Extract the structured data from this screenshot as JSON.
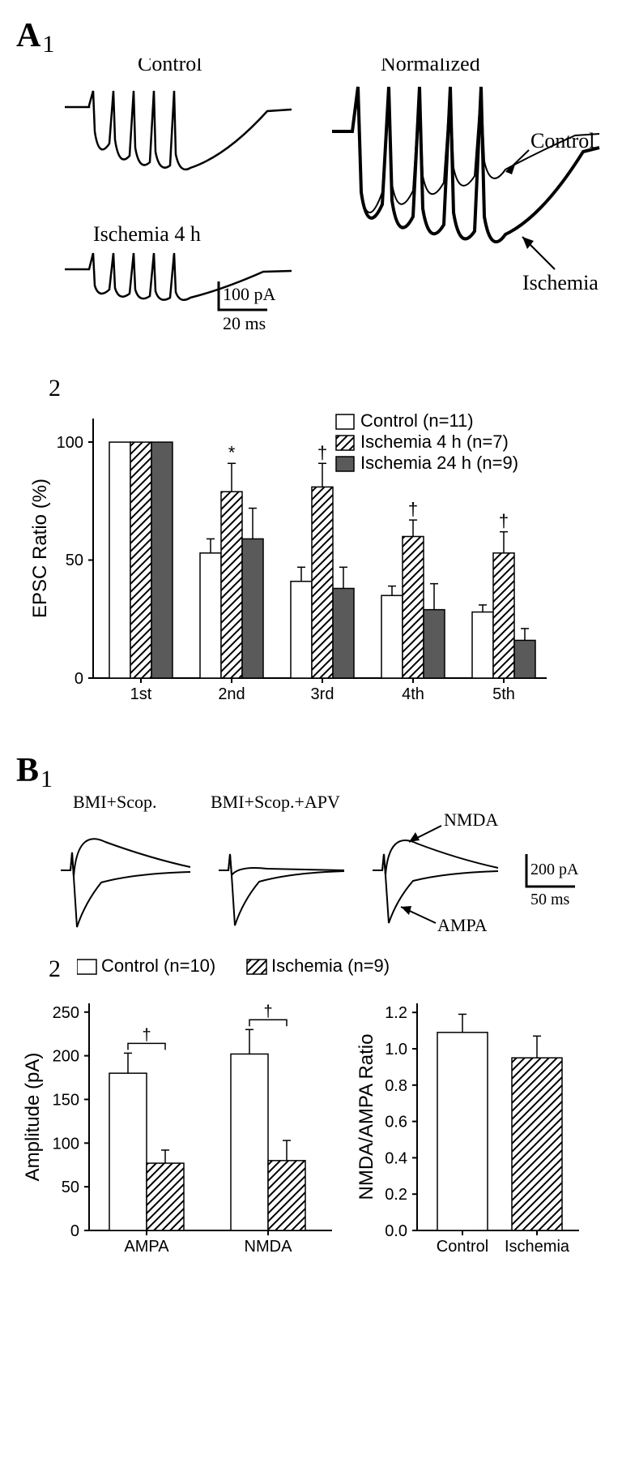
{
  "panelA": {
    "letter": "A",
    "sub1": "1",
    "sub2": "2",
    "traces": {
      "control_label": "Control",
      "ischemia_label": "Ischemia 4 h",
      "normalized_label": "Normalized",
      "overlay_control": "Control",
      "overlay_ischemia": "Ischemia",
      "scale_y": "100 pA",
      "scale_x": "20 ms"
    },
    "bar_chart": {
      "type": "bar",
      "ylabel": "EPSC Ratio (%)",
      "ylim": [
        0,
        110
      ],
      "yticks": [
        0,
        50,
        100
      ],
      "categories": [
        "1st",
        "2nd",
        "3rd",
        "4th",
        "5th"
      ],
      "groups": [
        {
          "label": "Control (n=11)",
          "fill": "#ffffff",
          "pattern": "none",
          "stroke": "#000000"
        },
        {
          "label": "Ischemia 4 h (n=7)",
          "fill": "#ffffff",
          "pattern": "diag",
          "stroke": "#000000"
        },
        {
          "label": "Ischemia 24 h (n=9)",
          "fill": "#5a5a5a",
          "pattern": "none",
          "stroke": "#000000"
        }
      ],
      "values": [
        [
          100,
          100,
          100
        ],
        [
          53,
          79,
          59
        ],
        [
          41,
          81,
          38
        ],
        [
          35,
          60,
          29
        ],
        [
          28,
          53,
          16
        ]
      ],
      "errors": [
        [
          0,
          0,
          0
        ],
        [
          6,
          12,
          13
        ],
        [
          6,
          10,
          9
        ],
        [
          4,
          7,
          11
        ],
        [
          3,
          9,
          5
        ]
      ],
      "sig": [
        null,
        "*",
        "†",
        "†",
        "†"
      ],
      "bar_width": 0.26,
      "background": "#ffffff",
      "axis_color": "#000000"
    }
  },
  "panelB": {
    "letter": "B",
    "sub1": "1",
    "sub2": "2",
    "traces": {
      "bmi_scop": "BMI+Scop.",
      "bmi_scop_apv": "BMI+Scop.+APV",
      "nmda_label": "NMDA",
      "ampa_label": "AMPA",
      "scale_y": "200 pA",
      "scale_x": "50 ms"
    },
    "amplitude_chart": {
      "type": "bar",
      "ylabel": "Amplitude (pA)",
      "ylim": [
        0,
        260
      ],
      "yticks": [
        0,
        50,
        100,
        150,
        200,
        250
      ],
      "categories": [
        "AMPA",
        "NMDA"
      ],
      "groups": [
        {
          "label": "Control (n=10)",
          "fill": "#ffffff",
          "pattern": "none",
          "stroke": "#000000"
        },
        {
          "label": "Ischemia (n=9)",
          "fill": "#ffffff",
          "pattern": "diag",
          "stroke": "#000000"
        }
      ],
      "values": [
        [
          180,
          77
        ],
        [
          202,
          80
        ]
      ],
      "errors": [
        [
          23,
          15
        ],
        [
          28,
          23
        ]
      ],
      "sig": [
        "†",
        "†"
      ],
      "bar_width": 0.35
    },
    "ratio_chart": {
      "type": "bar",
      "ylabel": "NMDA/AMPA Ratio",
      "ylim": [
        0,
        1.25
      ],
      "yticks": [
        0,
        0.2,
        0.4,
        0.6,
        0.8,
        1.0,
        1.2
      ],
      "categories": [
        "Control",
        "Ischemia"
      ],
      "values": [
        1.09,
        0.95
      ],
      "errors": [
        0.1,
        0.12
      ],
      "fills": [
        "#ffffff",
        "#ffffff"
      ],
      "patterns": [
        "none",
        "diag"
      ]
    }
  },
  "colors": {
    "bg": "#ffffff",
    "ink": "#000000",
    "grey": "#5a5a5a"
  }
}
